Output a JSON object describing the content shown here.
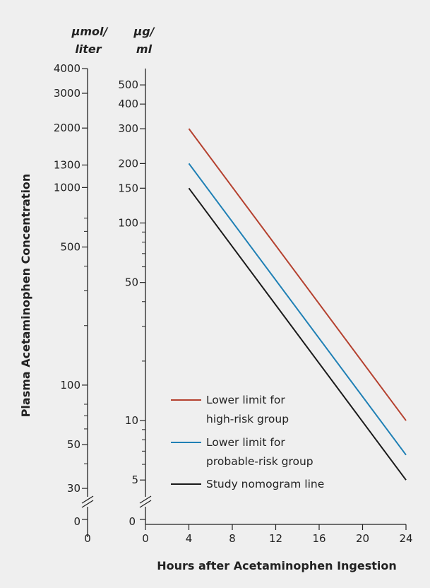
{
  "chart_data": {
    "type": "line",
    "ylabel": "Plasma Acetaminophen Concentration",
    "xlabel": "Hours after Acetaminophen Ingestion",
    "y_scale": "log",
    "x_ticks": [
      0,
      4,
      8,
      12,
      16,
      20,
      24
    ],
    "xlim": [
      0,
      24
    ],
    "left_axis": {
      "unit_line1": "µmol/",
      "unit_line2": "liter",
      "labeled_ticks": [
        4000,
        3000,
        2000,
        1300,
        1000,
        500,
        100,
        50,
        30
      ],
      "extra_ticks": [
        700,
        600,
        400,
        300,
        200,
        80,
        70,
        60,
        40
      ],
      "zero_label": "0",
      "x_label": "0"
    },
    "right_axis": {
      "unit_line1": "µg/",
      "unit_line2": "ml",
      "labeled_ticks": [
        500,
        400,
        300,
        200,
        150,
        100,
        50,
        10,
        5
      ],
      "extra_ticks": [
        90,
        80,
        70,
        60,
        40,
        30,
        20,
        9,
        8,
        7,
        6
      ],
      "zero_label": "0"
    },
    "ylim_ugml": [
      4.5,
      605
    ],
    "series": [
      {
        "name": "Lower limit for high-risk group",
        "legend_line1": "Lower limit for",
        "legend_line2": "high-risk group",
        "color": "#b5412f",
        "x": [
          4,
          24
        ],
        "y": [
          300,
          10
        ]
      },
      {
        "name": "Lower limit for probable-risk group",
        "legend_line1": "Lower limit for",
        "legend_line2": "probable-risk group",
        "color": "#1f80b5",
        "x": [
          4,
          24
        ],
        "y": [
          200,
          6.7
        ]
      },
      {
        "name": "Study nomogram line",
        "legend_line1": "Study nomogram line",
        "legend_line2": "",
        "color": "#1a1a1a",
        "x": [
          4,
          24
        ],
        "y": [
          150,
          5
        ]
      }
    ]
  }
}
